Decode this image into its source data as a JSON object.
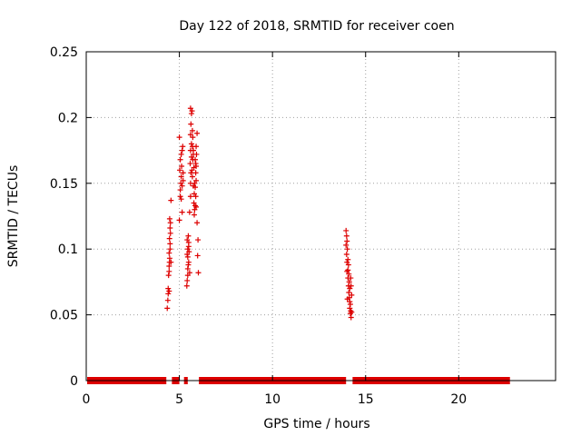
{
  "chart_data": {
    "type": "scatter",
    "title": "Day 122 of 2018, SRMTID for receiver coen",
    "xlabel": "GPS time / hours",
    "ylabel": "SRMTID / TECUs",
    "xlim": [
      0,
      25.2
    ],
    "ylim": [
      0,
      0.25
    ],
    "xticks": [
      0,
      5,
      10,
      15,
      20
    ],
    "xtick_labels": [
      "0",
      "5",
      "10",
      "15",
      "20"
    ],
    "yticks": [
      0,
      0.05,
      0.1,
      0.15,
      0.2,
      0.25
    ],
    "ytick_labels": [
      "0",
      "0.05",
      "0.1",
      "0.15",
      "0.2",
      "0.25"
    ],
    "grid": true,
    "marker": "+",
    "color": "#dd0000",
    "zero_baseline_segments": [
      [
        0.05,
        4.3
      ],
      [
        4.6,
        5.0
      ],
      [
        5.25,
        5.45
      ],
      [
        6.05,
        13.95
      ],
      [
        14.3,
        22.75
      ]
    ],
    "series": [
      {
        "name": "SRMTID",
        "points": [
          [
            4.35,
            0.055
          ],
          [
            4.38,
            0.061
          ],
          [
            4.4,
            0.066
          ],
          [
            4.4,
            0.07
          ],
          [
            4.42,
            0.08
          ],
          [
            4.45,
            0.083
          ],
          [
            4.45,
            0.087
          ],
          [
            4.47,
            0.09
          ],
          [
            4.48,
            0.093
          ],
          [
            4.45,
            0.097
          ],
          [
            4.5,
            0.1
          ],
          [
            4.5,
            0.104
          ],
          [
            4.47,
            0.108
          ],
          [
            4.52,
            0.112
          ],
          [
            4.5,
            0.116
          ],
          [
            4.52,
            0.12
          ],
          [
            4.48,
            0.123
          ],
          [
            4.55,
            0.137
          ],
          [
            4.45,
            0.068
          ],
          [
            4.55,
            0.09
          ],
          [
            5.0,
            0.122
          ],
          [
            5.05,
            0.14
          ],
          [
            5.05,
            0.145
          ],
          [
            5.08,
            0.15
          ],
          [
            5.1,
            0.155
          ],
          [
            5.02,
            0.16
          ],
          [
            5.12,
            0.163
          ],
          [
            5.05,
            0.168
          ],
          [
            5.1,
            0.172
          ],
          [
            5.15,
            0.175
          ],
          [
            5.18,
            0.178
          ],
          [
            5.0,
            0.185
          ],
          [
            5.15,
            0.128
          ],
          [
            5.2,
            0.152
          ],
          [
            5.1,
            0.138
          ],
          [
            5.2,
            0.158
          ],
          [
            5.15,
            0.148
          ],
          [
            5.4,
            0.072
          ],
          [
            5.42,
            0.076
          ],
          [
            5.45,
            0.08
          ],
          [
            5.45,
            0.085
          ],
          [
            5.48,
            0.088
          ],
          [
            5.42,
            0.096
          ],
          [
            5.45,
            0.1
          ],
          [
            5.5,
            0.102
          ],
          [
            5.42,
            0.107
          ],
          [
            5.48,
            0.11
          ],
          [
            5.55,
            0.082
          ],
          [
            5.5,
            0.09
          ],
          [
            5.45,
            0.094
          ],
          [
            5.52,
            0.098
          ],
          [
            5.5,
            0.105
          ],
          [
            5.55,
            0.128
          ],
          [
            5.6,
            0.14
          ],
          [
            5.6,
            0.15
          ],
          [
            5.62,
            0.158
          ],
          [
            5.58,
            0.165
          ],
          [
            5.65,
            0.17
          ],
          [
            5.6,
            0.175
          ],
          [
            5.65,
            0.18
          ],
          [
            5.6,
            0.187
          ],
          [
            5.62,
            0.195
          ],
          [
            5.65,
            0.203
          ],
          [
            5.6,
            0.207
          ],
          [
            5.68,
            0.205
          ],
          [
            5.7,
            0.19
          ],
          [
            5.72,
            0.185
          ],
          [
            5.7,
            0.178
          ],
          [
            5.75,
            0.172
          ],
          [
            5.72,
            0.168
          ],
          [
            5.78,
            0.162
          ],
          [
            5.7,
            0.155
          ],
          [
            5.75,
            0.148
          ],
          [
            5.8,
            0.142
          ],
          [
            5.78,
            0.135
          ],
          [
            5.82,
            0.13
          ],
          [
            5.8,
            0.126
          ],
          [
            5.85,
            0.133
          ],
          [
            5.88,
            0.14
          ],
          [
            5.85,
            0.147
          ],
          [
            5.9,
            0.152
          ],
          [
            5.88,
            0.158
          ],
          [
            5.9,
            0.163
          ],
          [
            5.85,
            0.168
          ],
          [
            5.92,
            0.172
          ],
          [
            5.9,
            0.178
          ],
          [
            5.95,
            0.188
          ],
          [
            5.95,
            0.12
          ],
          [
            6.0,
            0.107
          ],
          [
            5.98,
            0.095
          ],
          [
            6.02,
            0.082
          ],
          [
            5.9,
            0.132
          ],
          [
            5.68,
            0.16
          ],
          [
            5.75,
            0.175
          ],
          [
            5.82,
            0.15
          ],
          [
            5.88,
            0.165
          ],
          [
            13.95,
            0.114
          ],
          [
            13.98,
            0.11
          ],
          [
            14.0,
            0.106
          ],
          [
            13.95,
            0.103
          ],
          [
            14.02,
            0.1
          ],
          [
            13.98,
            0.096
          ],
          [
            14.05,
            0.092
          ],
          [
            14.0,
            0.09
          ],
          [
            14.08,
            0.088
          ],
          [
            14.05,
            0.084
          ],
          [
            14.1,
            0.081
          ],
          [
            14.05,
            0.078
          ],
          [
            14.12,
            0.075
          ],
          [
            14.08,
            0.072
          ],
          [
            14.15,
            0.07
          ],
          [
            14.1,
            0.067
          ],
          [
            14.12,
            0.063
          ],
          [
            14.15,
            0.06
          ],
          [
            14.18,
            0.058
          ],
          [
            14.15,
            0.055
          ],
          [
            14.2,
            0.053
          ],
          [
            14.18,
            0.051
          ],
          [
            14.22,
            0.048
          ],
          [
            14.25,
            0.052
          ],
          [
            14.25,
            0.065
          ],
          [
            14.22,
            0.072
          ],
          [
            14.0,
            0.083
          ],
          [
            14.02,
            0.062
          ],
          [
            14.2,
            0.078
          ]
        ]
      }
    ]
  }
}
